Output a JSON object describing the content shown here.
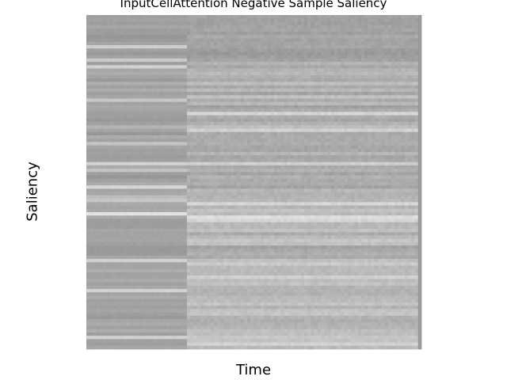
{
  "chart_data": {
    "type": "heatmap",
    "title": "InputCellAttention Negative Sample Saliency",
    "xlabel": "Time",
    "ylabel": "Saliency",
    "axes_visible": false,
    "grid": false,
    "colormap": "gray",
    "n_rows": 100,
    "n_cols": 100,
    "column_split": 30,
    "row_shade_left": [
      159,
      162,
      158,
      166,
      158,
      157,
      151,
      154,
      165,
      206,
      161,
      153,
      162,
      202,
      159,
      208,
      167,
      172,
      163,
      154,
      175,
      160,
      172,
      160,
      166,
      198,
      163,
      168,
      164,
      160,
      158,
      153,
      161,
      180,
      165,
      152,
      173,
      162,
      196,
      166,
      160,
      161,
      157,
      160,
      210,
      171,
      195,
      158,
      151,
      161,
      172,
      214,
      164,
      169,
      189,
      199,
      169,
      165,
      169,
      226,
      170,
      157,
      157,
      157,
      166,
      163,
      163,
      165,
      160,
      154,
      153,
      155,
      168,
      209,
      164,
      164,
      173,
      162,
      162,
      171,
      160,
      168,
      209,
      164,
      172,
      160,
      164,
      160,
      166,
      159,
      154,
      166,
      171,
      161,
      174,
      159,
      208,
      161,
      158,
      167
    ],
    "row_shade_right": [
      162,
      161,
      160,
      163,
      165,
      160,
      170,
      162,
      163,
      165,
      158,
      154,
      158,
      163,
      179,
      168,
      180,
      185,
      176,
      170,
      191,
      169,
      184,
      163,
      193,
      171,
      185,
      161,
      173,
      213,
      173,
      166,
      178,
      190,
      209,
      170,
      171,
      171,
      173,
      167,
      167,
      182,
      166,
      169,
      206,
      170,
      178,
      164,
      177,
      170,
      173,
      163,
      183,
      177,
      180,
      183,
      213,
      181,
      195,
      186,
      222,
      213,
      184,
      184,
      193,
      171,
      186,
      198,
      193,
      163,
      170,
      176,
      170,
      191,
      202,
      185,
      186,
      186,
      208,
      188,
      194,
      180,
      178,
      177,
      186,
      187,
      195,
      179,
      195,
      197,
      179,
      174,
      177,
      180,
      190,
      190,
      200,
      195,
      210,
      186
    ],
    "last_column_shade": 155
  }
}
